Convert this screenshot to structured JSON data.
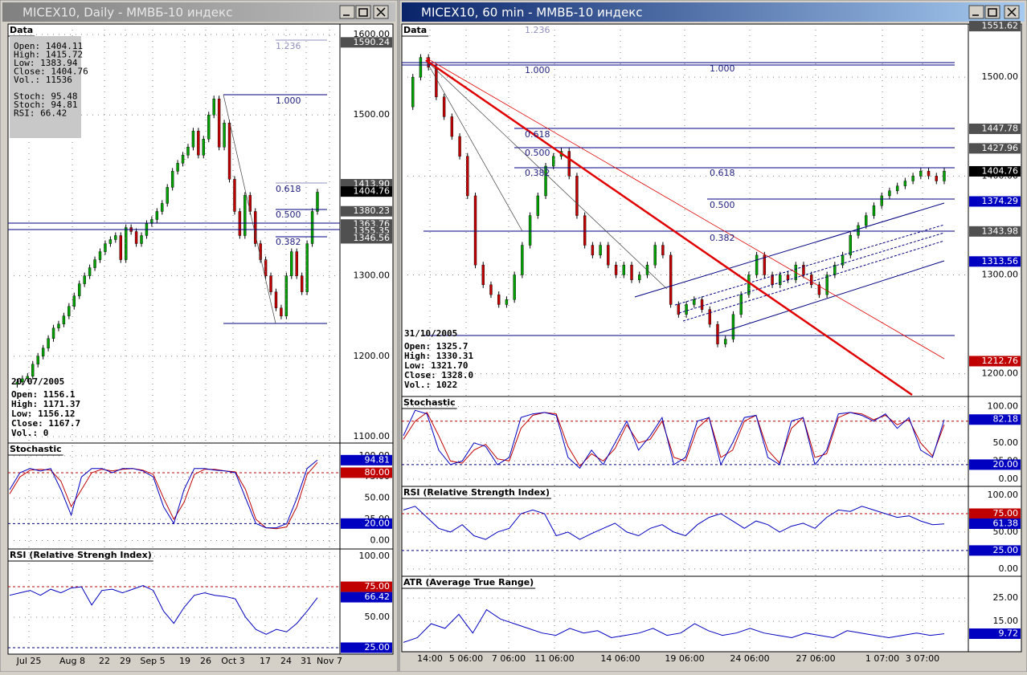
{
  "windows": [
    {
      "title": "MICEX10, Daily - ММВБ-10 индекс",
      "data_box": {
        "label": "Data",
        "lines": [
          "Open: 1404.11",
          "High: 1415.72",
          "Low: 1383.94",
          "Close: 1404.76",
          "Vol.: 11536",
          "Stoch: 95.48",
          "Stoch: 94.81",
          "RSI: 66.42"
        ]
      },
      "cursor_box": {
        "date": "20/07/2005",
        "lines": [
          "Open: 1156.1",
          "High: 1171.37",
          "Low: 1156.12",
          "Close: 1167.7",
          "Vol.: 0"
        ]
      },
      "fib_labels": [
        "1.236",
        "1.000",
        "0.618",
        "0.500",
        "0.382"
      ],
      "dates": [
        "Jul 25",
        "Aug 8",
        "22",
        "29",
        "Sep 5",
        "19",
        "26",
        "Oct 3",
        "17",
        "24",
        "31",
        "Nov 7"
      ],
      "panels": [
        {
          "label": "Data",
          "ylim": [
            1092,
            1613
          ],
          "yticks": [
            {
              "value": 1600,
              "label": "1600.00"
            },
            {
              "value": 1500,
              "label": "1500.00"
            },
            {
              "value": 1300,
              "label": "1300.00"
            },
            {
              "value": 1200,
              "label": "1200.00"
            },
            {
              "value": 1100,
              "label": "1100.00"
            }
          ],
          "closes": [
            1165,
            1168,
            1172,
            1175,
            1190,
            1200,
            1210,
            1222,
            1235,
            1240,
            1250,
            1262,
            1275,
            1290,
            1300,
            1310,
            1320,
            1330,
            1340,
            1345,
            1350,
            1320,
            1360,
            1355,
            1340,
            1350,
            1365,
            1370,
            1380,
            1390,
            1410,
            1430,
            1440,
            1450,
            1460,
            1480,
            1450,
            1470,
            1500,
            1520,
            1460,
            1490,
            1420,
            1380,
            1350,
            1400,
            1380,
            1340,
            1320,
            1300,
            1280,
            1260,
            1250,
            1300,
            1330,
            1300,
            1280,
            1340,
            1380,
            1404
          ],
          "badges": [
            {
              "value": 1590.24,
              "label": "1590.24",
              "color": "#505050"
            },
            {
              "value": 1413.9,
              "label": "1413.90",
              "color": "#505050"
            },
            {
              "value": 1404.76,
              "label": "1404.76",
              "color": "#000000"
            },
            {
              "value": 1380.23,
              "label": "1380.23",
              "color": "#505050"
            },
            {
              "value": 1363.76,
              "label": "1363.76",
              "color": "#505050"
            },
            {
              "value": 1355.35,
              "label": "1355.35",
              "color": "#505050"
            },
            {
              "value": 1346.56,
              "label": "1346.56",
              "color": "#505050"
            }
          ]
        },
        {
          "label": "Stochastic",
          "ylim": [
            -10,
            115
          ],
          "yticks": [
            {
              "value": 100,
              "label": "100.00"
            },
            {
              "value": 75,
              "label": "75.00"
            },
            {
              "value": 50,
              "label": "50.00"
            },
            {
              "value": 25,
              "label": "25.00"
            },
            {
              "value": 0,
              "label": "0.00"
            }
          ],
          "levels": [
            {
              "value": 80,
              "color": "#c00000"
            },
            {
              "value": 20,
              "color": "#000080"
            }
          ],
          "lines": [
            {
              "color": "#c00000",
              "values": [
                55,
                75,
                83,
                84,
                83,
                70,
                40,
                60,
                80,
                84,
                82,
                84,
                85,
                83,
                78,
                50,
                25,
                45,
                78,
                84,
                84,
                82,
                81,
                60,
                25,
                15,
                14,
                16,
                40,
                78,
                92
              ]
            },
            {
              "color": "#0000c0",
              "values": [
                60,
                80,
                85,
                82,
                85,
                60,
                30,
                75,
                85,
                85,
                80,
                85,
                85,
                82,
                75,
                40,
                20,
                60,
                85,
                85,
                83,
                82,
                80,
                50,
                20,
                15,
                15,
                20,
                50,
                85,
                95
              ]
            }
          ],
          "badges": [
            {
              "value": 94.81,
              "label": "94.81",
              "color": "#0000c0"
            },
            {
              "value": 80,
              "label": "80.00",
              "color": "#c00000"
            },
            {
              "value": 20,
              "label": "20.00",
              "color": "#0000c0"
            }
          ]
        },
        {
          "label": "RSI (Relative Strengh Index)",
          "ylim": [
            19.7,
            106
          ],
          "yticks": [
            {
              "value": 100,
              "label": "100.00"
            },
            {
              "value": 50,
              "label": "50.00"
            }
          ],
          "levels": [
            {
              "value": 75,
              "color": "#c00000"
            },
            {
              "value": 25,
              "color": "#000080"
            }
          ],
          "lines": [
            {
              "color": "#0000c0",
              "values": [
                68,
                70,
                72,
                68,
                73,
                70,
                74,
                75,
                60,
                72,
                73,
                70,
                73,
                76,
                72,
                55,
                45,
                58,
                68,
                70,
                68,
                67,
                65,
                50,
                40,
                36,
                40,
                38,
                45,
                55,
                66
              ]
            }
          ],
          "badges": [
            {
              "value": 75,
              "label": "75.00",
              "color": "#c00000"
            },
            {
              "value": 66.42,
              "label": "66.42",
              "color": "#0000c0"
            },
            {
              "value": 25,
              "label": "25.00",
              "color": "#0000c0"
            }
          ]
        }
      ]
    },
    {
      "title": "MICEX10, 60 min - ММВБ-10 индекс",
      "data_box": {
        "label": "Data",
        "lines": []
      },
      "cursor_box": {
        "date": "31/10/2005",
        "lines": [
          "Open: 1325.7",
          "High: 1330.31",
          "Low: 1321.70",
          "Close: 1328.0",
          "Vol.: 1022"
        ]
      },
      "fib_labels": [
        "1.236",
        "1.000",
        "0.618",
        "0.500",
        "0.382",
        "1.000",
        "0.618",
        "0.500",
        "0.382"
      ],
      "dates": [
        "14:00",
        "5 06:00",
        "7 06:00",
        "11 06:00",
        "14 06:00",
        "19 06:00",
        "24 06:00",
        "27 06:00",
        "1 07:00",
        "3 07:00"
      ],
      "panels": [
        {
          "label": "Data",
          "ylim": [
            1177,
            1553.7
          ],
          "yticks": [
            {
              "value": 1500,
              "label": "1500.00"
            },
            {
              "value": 1400,
              "label": "1400.00"
            },
            {
              "value": 1300,
              "label": "1300.00"
            },
            {
              "value": 1200,
              "label": "1200.00"
            }
          ],
          "closes": [
            1470,
            1500,
            1520,
            1510,
            1480,
            1460,
            1440,
            1420,
            1380,
            1310,
            1290,
            1280,
            1270,
            1275,
            1300,
            1330,
            1360,
            1380,
            1410,
            1420,
            1425,
            1400,
            1360,
            1330,
            1320,
            1330,
            1310,
            1300,
            1310,
            1295,
            1300,
            1310,
            1330,
            1320,
            1270,
            1260,
            1270,
            1275,
            1265,
            1250,
            1230,
            1235,
            1260,
            1280,
            1300,
            1320,
            1300,
            1290,
            1300,
            1295,
            1310,
            1300,
            1290,
            1280,
            1300,
            1310,
            1320,
            1340,
            1350,
            1360,
            1370,
            1380,
            1385,
            1390,
            1395,
            1400,
            1405,
            1400,
            1395,
            1405
          ],
          "badges": [
            {
              "value": 1551.62,
              "label": "1551.62",
              "color": "#505050"
            },
            {
              "value": 1447.78,
              "label": "1447.78",
              "color": "#505050"
            },
            {
              "value": 1427.96,
              "label": "1427.96",
              "color": "#505050"
            },
            {
              "value": 1404.76,
              "label": "1404.76",
              "color": "#000000"
            },
            {
              "value": 1374.29,
              "label": "1374.29",
              "color": "#0000c0"
            },
            {
              "value": 1343.98,
              "label": "1343.98",
              "color": "#505050"
            },
            {
              "value": 1313.56,
              "label": "1313.56",
              "color": "#0000c0"
            },
            {
              "value": 1212.76,
              "label": "1212.76",
              "color": "#c00000"
            }
          ]
        },
        {
          "label": "Stochastic",
          "ylim": [
            -10,
            114
          ],
          "yticks": [
            {
              "value": 100,
              "label": "100.00"
            },
            {
              "value": 50,
              "label": "50.00"
            },
            {
              "value": 25,
              "label": "25.00"
            },
            {
              "value": 0,
              "label": "0.00"
            }
          ],
          "levels": [
            {
              "value": 80,
              "color": "#c00000"
            },
            {
              "value": 20,
              "color": "#000080"
            }
          ],
          "lines": [
            {
              "color": "#c00000",
              "values": [
                55,
                80,
                92,
                60,
                25,
                22,
                40,
                48,
                28,
                25,
                70,
                88,
                92,
                90,
                45,
                18,
                35,
                25,
                42,
                75,
                50,
                55,
                80,
                30,
                25,
                70,
                85,
                30,
                40,
                80,
                88,
                40,
                22,
                70,
                85,
                30,
                35,
                85,
                92,
                90,
                82,
                88,
                75,
                82,
                50,
                32,
                75
              ]
            },
            {
              "color": "#0000c0",
              "values": [
                60,
                95,
                90,
                40,
                20,
                25,
                50,
                45,
                20,
                30,
                85,
                90,
                92,
                88,
                30,
                15,
                40,
                20,
                50,
                80,
                40,
                60,
                85,
                20,
                30,
                80,
                85,
                20,
                50,
                85,
                88,
                30,
                20,
                80,
                85,
                20,
                40,
                90,
                92,
                88,
                80,
                90,
                70,
                85,
                40,
                30,
                82
              ]
            }
          ],
          "badges": [
            {
              "value": 82.18,
              "label": "82.18",
              "color": "#0000c0"
            },
            {
              "value": 20,
              "label": "20.00",
              "color": "#0000c0"
            }
          ]
        },
        {
          "label": "RSI (Relative Strength Index)",
          "ylim": [
            -10,
            112
          ],
          "yticks": [
            {
              "value": 100,
              "label": "100.00"
            },
            {
              "value": 50,
              "label": "50.00"
            },
            {
              "value": 0,
              "label": "0.00"
            }
          ],
          "levels": [
            {
              "value": 75,
              "color": "#c00000"
            },
            {
              "value": 25,
              "color": "#000080"
            }
          ],
          "lines": [
            {
              "color": "#0000c0",
              "values": [
                80,
                85,
                70,
                55,
                50,
                60,
                45,
                40,
                50,
                55,
                75,
                80,
                75,
                45,
                50,
                40,
                48,
                55,
                62,
                50,
                45,
                55,
                60,
                50,
                45,
                60,
                70,
                75,
                65,
                55,
                65,
                60,
                50,
                58,
                62,
                55,
                70,
                80,
                78,
                85,
                80,
                75,
                70,
                72,
                65,
                60,
                61
              ]
            }
          ],
          "badges": [
            {
              "value": 75,
              "label": "75.00",
              "color": "#c00000"
            },
            {
              "value": 61.38,
              "label": "61.38",
              "color": "#0000c0"
            },
            {
              "value": 25,
              "label": "25.00",
              "color": "#0000c0"
            }
          ]
        },
        {
          "label": "ATR (Average True Range)",
          "ylim": [
            2,
            34.3
          ],
          "yticks": [
            {
              "value": 25,
              "label": "25.00"
            },
            {
              "value": 15,
              "label": "15.00"
            }
          ],
          "lines": [
            {
              "color": "#0000c0",
              "values": [
                6,
                8,
                14,
                12,
                18,
                10,
                20,
                16,
                14,
                12,
                10,
                9,
                12,
                10,
                11,
                8,
                9,
                10,
                12,
                9,
                10,
                14,
                11,
                9,
                10,
                12,
                10,
                9,
                8,
                10,
                9,
                8,
                11,
                10,
                9,
                8,
                9,
                10,
                9,
                9.7
              ]
            }
          ],
          "badges": [
            {
              "value": 9.72,
              "label": "9.72",
              "color": "#0000c0"
            }
          ]
        }
      ]
    }
  ]
}
